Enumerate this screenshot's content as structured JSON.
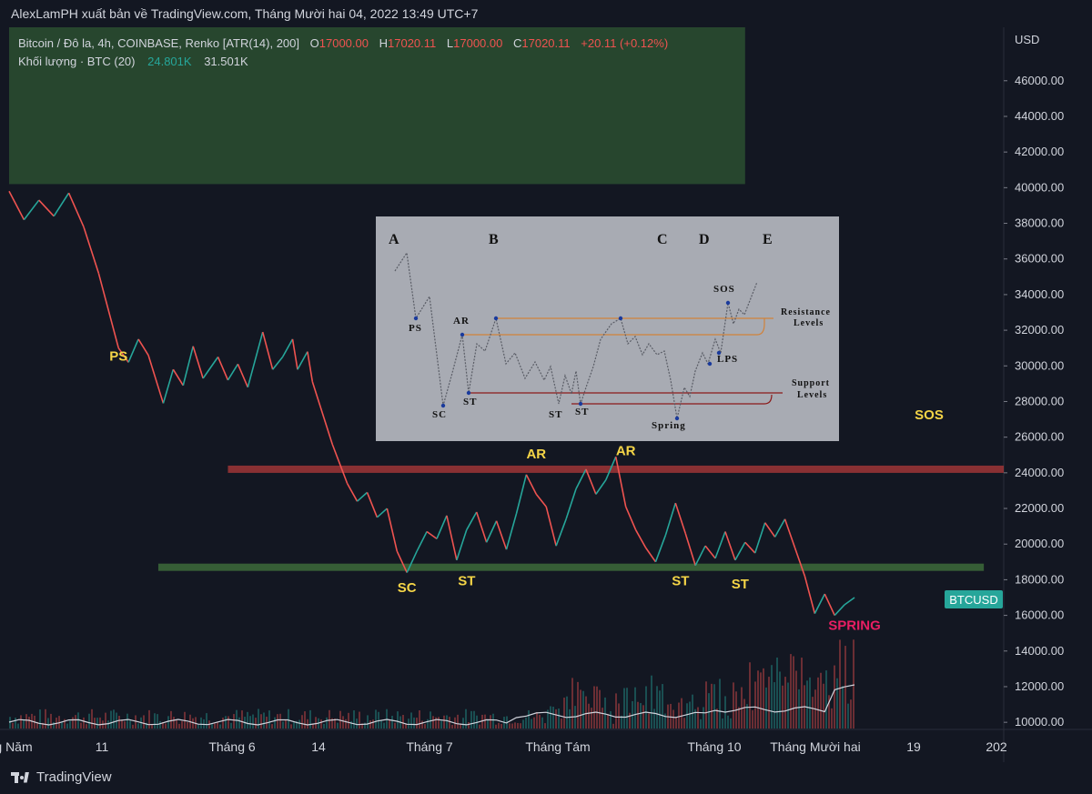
{
  "header": {
    "publish_line": "AlexLamPH xuất bản về TradingView.com, Tháng Mười hai 04, 2022 13:49 UTC+7"
  },
  "legend": {
    "symbol_line": "Bitcoin / Đô la, 4h, COINBASE, Renko [ATR(14), 200]",
    "o_label": "O",
    "o_value": "17000.00",
    "h_label": "H",
    "h_value": "17020.11",
    "l_label": "L",
    "l_value": "17000.00",
    "c_label": "C",
    "c_value": "17020.11",
    "change": "+20.11 (+0.12%)",
    "volume_label": "Khối lượng · BTC (20)",
    "volume_value1": "24.801K",
    "volume_value2": "31.501K"
  },
  "footer": {
    "brand": "TradingView"
  },
  "colors": {
    "background": "#131722",
    "up": "#26a69a",
    "down": "#ef5350",
    "resistance_band": "#b23a3a",
    "support_band": "#3d6b3a",
    "green_zone": "#2f5733",
    "annotation": "#f5d547",
    "spring": "#e91e63",
    "price_tag": "#26a69a"
  },
  "chart_data": {
    "type": "line",
    "title": "Bitcoin / Đô la, 4h, COINBASE, Renko [ATR(14), 200]",
    "currency": "USD",
    "ylim": [
      10000,
      48000
    ],
    "y_ticks": [
      "46000.00",
      "44000.00",
      "42000.00",
      "40000.00",
      "38000.00",
      "36000.00",
      "34000.00",
      "32000.00",
      "30000.00",
      "28000.00",
      "26000.00",
      "24000.00",
      "22000.00",
      "20000.00",
      "18000.00",
      "16000.00",
      "14000.00",
      "12000.00",
      "10000.00"
    ],
    "x_ticks": [
      "g Năm",
      "11",
      "Tháng 6",
      "14",
      "Tháng 7",
      "Tháng Tám",
      "Tháng 10",
      "Tháng Mười hai",
      "19",
      "202"
    ],
    "last_price_label": "BTCUSD",
    "series": [
      {
        "name": "BTCUSD",
        "points": [
          [
            0,
            39800
          ],
          [
            3,
            38200
          ],
          [
            6,
            39300
          ],
          [
            9,
            38400
          ],
          [
            12,
            39700
          ],
          [
            15,
            37800
          ],
          [
            18,
            35200
          ],
          [
            22,
            31000
          ],
          [
            24,
            30200
          ],
          [
            26,
            31500
          ],
          [
            28,
            30600
          ],
          [
            31,
            27900
          ],
          [
            33,
            29800
          ],
          [
            35,
            28900
          ],
          [
            37,
            31100
          ],
          [
            39,
            29300
          ],
          [
            42,
            30500
          ],
          [
            44,
            29200
          ],
          [
            46,
            30100
          ],
          [
            48,
            28800
          ],
          [
            51,
            31900
          ],
          [
            53,
            29800
          ],
          [
            55,
            30500
          ],
          [
            57,
            31500
          ],
          [
            58,
            29800
          ],
          [
            60,
            30800
          ],
          [
            61,
            29100
          ],
          [
            65,
            25600
          ],
          [
            68,
            23400
          ],
          [
            70,
            22400
          ],
          [
            72,
            22900
          ],
          [
            74,
            21500
          ],
          [
            76,
            22000
          ],
          [
            78,
            19600
          ],
          [
            80,
            18400
          ],
          [
            82,
            19600
          ],
          [
            84,
            20700
          ],
          [
            86,
            20300
          ],
          [
            88,
            21600
          ],
          [
            90,
            19100
          ],
          [
            92,
            20800
          ],
          [
            94,
            21800
          ],
          [
            96,
            20100
          ],
          [
            98,
            21300
          ],
          [
            100,
            19700
          ],
          [
            102,
            21700
          ],
          [
            104,
            23900
          ],
          [
            106,
            22800
          ],
          [
            108,
            22100
          ],
          [
            110,
            19900
          ],
          [
            112,
            21400
          ],
          [
            114,
            23100
          ],
          [
            116,
            24200
          ],
          [
            118,
            22800
          ],
          [
            120,
            23600
          ],
          [
            122,
            24900
          ],
          [
            124,
            22100
          ],
          [
            126,
            20800
          ],
          [
            128,
            19800
          ],
          [
            130,
            19000
          ],
          [
            132,
            20500
          ],
          [
            134,
            22300
          ],
          [
            136,
            20600
          ],
          [
            138,
            18800
          ],
          [
            140,
            19900
          ],
          [
            142,
            19200
          ],
          [
            144,
            20700
          ],
          [
            146,
            19100
          ],
          [
            148,
            20100
          ],
          [
            150,
            19500
          ],
          [
            152,
            21200
          ],
          [
            154,
            20400
          ],
          [
            156,
            21400
          ],
          [
            158,
            19800
          ],
          [
            160,
            18200
          ],
          [
            162,
            16100
          ],
          [
            164,
            17200
          ],
          [
            166,
            16000
          ],
          [
            168,
            16600
          ],
          [
            170,
            17000
          ]
        ]
      }
    ],
    "resistance_level": 24200,
    "support_level": 18700,
    "green_zone": [
      40200,
      49000
    ],
    "annotations": [
      {
        "text": "PS",
        "x": 22,
        "y": 30300,
        "color": "yellow"
      },
      {
        "text": "SC",
        "x": 80,
        "y": 17300,
        "color": "yellow"
      },
      {
        "text": "ST",
        "x": 92,
        "y": 17700,
        "color": "yellow"
      },
      {
        "text": "AR",
        "x": 106,
        "y": 24800,
        "color": "yellow"
      },
      {
        "text": "AR",
        "x": 124,
        "y": 25000,
        "color": "yellow"
      },
      {
        "text": "ST",
        "x": 135,
        "y": 17700,
        "color": "yellow"
      },
      {
        "text": "ST",
        "x": 147,
        "y": 17500,
        "color": "yellow"
      },
      {
        "text": "SPRING",
        "x": 170,
        "y": 15200,
        "color": "pink"
      },
      {
        "text": "SOS",
        "x": 185,
        "y": 27000,
        "color": "yellow"
      }
    ],
    "inset": {
      "phases": [
        "A",
        "B",
        "C",
        "D",
        "E"
      ],
      "labels": [
        "PS",
        "SC",
        "AR",
        "ST",
        "ST",
        "ST",
        "Spring",
        "LPS",
        "SOS"
      ],
      "resistance_text": "Resistance Levels",
      "support_text": "Support Levels"
    }
  }
}
